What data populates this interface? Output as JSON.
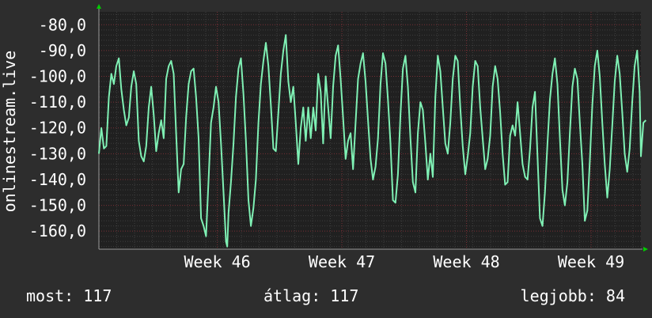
{
  "chart_data": {
    "type": "line",
    "ylabel": "onlinestream.live",
    "ylim": [
      -167,
      -75
    ],
    "yticks": [
      -80,
      -90,
      -100,
      -110,
      -120,
      -130,
      -140,
      -150,
      -160
    ],
    "ytick_labels": [
      "-80,0",
      "-90,0",
      "-100,0",
      "-110,0",
      "-120,0",
      "-130,0",
      "-140,0",
      "-150,0",
      "-160,0"
    ],
    "xlim": [
      0,
      4.35
    ],
    "xticks": [
      {
        "label": "Week 46",
        "x": 0.95
      },
      {
        "label": "Week 47",
        "x": 1.95
      },
      {
        "label": "Week 48",
        "x": 2.95
      },
      {
        "label": "Week 49",
        "x": 3.95
      }
    ],
    "grid": true,
    "colors": {
      "background": "#2d2d2d",
      "plot_bg": "#202020",
      "line": "#7ff0b4",
      "major_grid": "#7a2f36",
      "minor_grid": "#3e3e3e",
      "axis": "#9a9a9a",
      "arrow": "#00cc00",
      "text": "#ffffff"
    },
    "series": [
      {
        "values": [
          [
            0.0,
            -130
          ],
          [
            0.02,
            -120
          ],
          [
            0.04,
            -128
          ],
          [
            0.06,
            -127
          ],
          [
            0.08,
            -108
          ],
          [
            0.1,
            -99
          ],
          [
            0.12,
            -103
          ],
          [
            0.14,
            -96
          ],
          [
            0.16,
            -93
          ],
          [
            0.18,
            -105
          ],
          [
            0.2,
            -113
          ],
          [
            0.22,
            -119
          ],
          [
            0.24,
            -116
          ],
          [
            0.26,
            -104
          ],
          [
            0.28,
            -98
          ],
          [
            0.3,
            -103
          ],
          [
            0.32,
            -125
          ],
          [
            0.34,
            -131
          ],
          [
            0.36,
            -133
          ],
          [
            0.38,
            -127
          ],
          [
            0.4,
            -112
          ],
          [
            0.42,
            -104
          ],
          [
            0.44,
            -115
          ],
          [
            0.46,
            -129
          ],
          [
            0.48,
            -122
          ],
          [
            0.5,
            -117
          ],
          [
            0.52,
            -124
          ],
          [
            0.54,
            -101
          ],
          [
            0.56,
            -96
          ],
          [
            0.58,
            -94
          ],
          [
            0.6,
            -99
          ],
          [
            0.62,
            -122
          ],
          [
            0.64,
            -145
          ],
          [
            0.66,
            -136
          ],
          [
            0.68,
            -134
          ],
          [
            0.7,
            -116
          ],
          [
            0.72,
            -103
          ],
          [
            0.74,
            -98
          ],
          [
            0.76,
            -97
          ],
          [
            0.78,
            -108
          ],
          [
            0.8,
            -124
          ],
          [
            0.82,
            -155
          ],
          [
            0.84,
            -158
          ],
          [
            0.86,
            -162
          ],
          [
            0.88,
            -140
          ],
          [
            0.9,
            -118
          ],
          [
            0.92,
            -112
          ],
          [
            0.94,
            -104
          ],
          [
            0.96,
            -110
          ],
          [
            0.98,
            -126
          ],
          [
            1.0,
            -145
          ],
          [
            1.02,
            -164
          ],
          [
            1.03,
            -166
          ],
          [
            1.04,
            -153
          ],
          [
            1.06,
            -141
          ],
          [
            1.08,
            -126
          ],
          [
            1.1,
            -108
          ],
          [
            1.12,
            -97
          ],
          [
            1.14,
            -93
          ],
          [
            1.16,
            -107
          ],
          [
            1.18,
            -125
          ],
          [
            1.2,
            -148
          ],
          [
            1.22,
            -158
          ],
          [
            1.24,
            -151
          ],
          [
            1.26,
            -140
          ],
          [
            1.28,
            -118
          ],
          [
            1.3,
            -103
          ],
          [
            1.32,
            -94
          ],
          [
            1.34,
            -87
          ],
          [
            1.36,
            -96
          ],
          [
            1.38,
            -111
          ],
          [
            1.4,
            -128
          ],
          [
            1.42,
            -129
          ],
          [
            1.44,
            -114
          ],
          [
            1.46,
            -99
          ],
          [
            1.48,
            -90
          ],
          [
            1.5,
            -84
          ],
          [
            1.52,
            -102
          ],
          [
            1.54,
            -110
          ],
          [
            1.56,
            -104
          ],
          [
            1.58,
            -118
          ],
          [
            1.6,
            -134
          ],
          [
            1.62,
            -120
          ],
          [
            1.64,
            -112
          ],
          [
            1.66,
            -125
          ],
          [
            1.68,
            -112
          ],
          [
            1.7,
            -124
          ],
          [
            1.72,
            -112
          ],
          [
            1.74,
            -121
          ],
          [
            1.76,
            -99
          ],
          [
            1.78,
            -106
          ],
          [
            1.8,
            -126
          ],
          [
            1.82,
            -100
          ],
          [
            1.84,
            -112
          ],
          [
            1.86,
            -124
          ],
          [
            1.88,
            -104
          ],
          [
            1.9,
            -92
          ],
          [
            1.92,
            -88
          ],
          [
            1.94,
            -101
          ],
          [
            1.96,
            -116
          ],
          [
            1.98,
            -132
          ],
          [
            2.0,
            -125
          ],
          [
            2.02,
            -122
          ],
          [
            2.04,
            -136
          ],
          [
            2.06,
            -118
          ],
          [
            2.08,
            -101
          ],
          [
            2.1,
            -95
          ],
          [
            2.12,
            -91
          ],
          [
            2.14,
            -102
          ],
          [
            2.16,
            -117
          ],
          [
            2.18,
            -132
          ],
          [
            2.2,
            -140
          ],
          [
            2.22,
            -135
          ],
          [
            2.24,
            -124
          ],
          [
            2.26,
            -103
          ],
          [
            2.28,
            -91
          ],
          [
            2.3,
            -95
          ],
          [
            2.32,
            -109
          ],
          [
            2.34,
            -126
          ],
          [
            2.36,
            -148
          ],
          [
            2.38,
            -149
          ],
          [
            2.4,
            -138
          ],
          [
            2.42,
            -115
          ],
          [
            2.44,
            -97
          ],
          [
            2.46,
            -92
          ],
          [
            2.48,
            -104
          ],
          [
            2.5,
            -124
          ],
          [
            2.52,
            -141
          ],
          [
            2.54,
            -145
          ],
          [
            2.56,
            -122
          ],
          [
            2.58,
            -110
          ],
          [
            2.6,
            -113
          ],
          [
            2.62,
            -126
          ],
          [
            2.64,
            -140
          ],
          [
            2.66,
            -130
          ],
          [
            2.68,
            -139
          ],
          [
            2.7,
            -108
          ],
          [
            2.72,
            -92
          ],
          [
            2.74,
            -98
          ],
          [
            2.76,
            -112
          ],
          [
            2.78,
            -126
          ],
          [
            2.8,
            -130
          ],
          [
            2.82,
            -118
          ],
          [
            2.84,
            -101
          ],
          [
            2.86,
            -92
          ],
          [
            2.88,
            -94
          ],
          [
            2.9,
            -112
          ],
          [
            2.92,
            -127
          ],
          [
            2.94,
            -138
          ],
          [
            2.96,
            -131
          ],
          [
            2.98,
            -122
          ],
          [
            3.0,
            -104
          ],
          [
            3.02,
            -94
          ],
          [
            3.04,
            -96
          ],
          [
            3.06,
            -112
          ],
          [
            3.08,
            -124
          ],
          [
            3.1,
            -136
          ],
          [
            3.12,
            -132
          ],
          [
            3.14,
            -123
          ],
          [
            3.16,
            -104
          ],
          [
            3.18,
            -96
          ],
          [
            3.2,
            -101
          ],
          [
            3.22,
            -114
          ],
          [
            3.24,
            -130
          ],
          [
            3.26,
            -142
          ],
          [
            3.28,
            -141
          ],
          [
            3.3,
            -123
          ],
          [
            3.32,
            -119
          ],
          [
            3.34,
            -123
          ],
          [
            3.36,
            -110
          ],
          [
            3.38,
            -122
          ],
          [
            3.4,
            -134
          ],
          [
            3.42,
            -139
          ],
          [
            3.44,
            -140
          ],
          [
            3.46,
            -128
          ],
          [
            3.48,
            -112
          ],
          [
            3.5,
            -106
          ],
          [
            3.52,
            -131
          ],
          [
            3.54,
            -155
          ],
          [
            3.56,
            -158
          ],
          [
            3.58,
            -145
          ],
          [
            3.6,
            -126
          ],
          [
            3.62,
            -109
          ],
          [
            3.64,
            -99
          ],
          [
            3.66,
            -93
          ],
          [
            3.68,
            -103
          ],
          [
            3.7,
            -124
          ],
          [
            3.72,
            -144
          ],
          [
            3.74,
            -150
          ],
          [
            3.76,
            -141
          ],
          [
            3.78,
            -122
          ],
          [
            3.8,
            -104
          ],
          [
            3.82,
            -97
          ],
          [
            3.84,
            -101
          ],
          [
            3.86,
            -118
          ],
          [
            3.88,
            -134
          ],
          [
            3.9,
            -156
          ],
          [
            3.92,
            -152
          ],
          [
            3.94,
            -133
          ],
          [
            3.96,
            -111
          ],
          [
            3.98,
            -96
          ],
          [
            4.0,
            -90
          ],
          [
            4.02,
            -100
          ],
          [
            4.04,
            -118
          ],
          [
            4.06,
            -134
          ],
          [
            4.08,
            -147
          ],
          [
            4.1,
            -136
          ],
          [
            4.12,
            -119
          ],
          [
            4.14,
            -102
          ],
          [
            4.16,
            -92
          ],
          [
            4.18,
            -99
          ],
          [
            4.2,
            -114
          ],
          [
            4.22,
            -130
          ],
          [
            4.24,
            -137
          ],
          [
            4.26,
            -128
          ],
          [
            4.28,
            -110
          ],
          [
            4.3,
            -96
          ],
          [
            4.32,
            -90
          ],
          [
            4.34,
            -106
          ],
          [
            4.35,
            -131
          ],
          [
            4.37,
            -118
          ],
          [
            4.39,
            -117
          ]
        ]
      }
    ]
  },
  "footer": {
    "current": "most: 117",
    "average": "átlag: 117",
    "max": "legjobb: 84"
  }
}
